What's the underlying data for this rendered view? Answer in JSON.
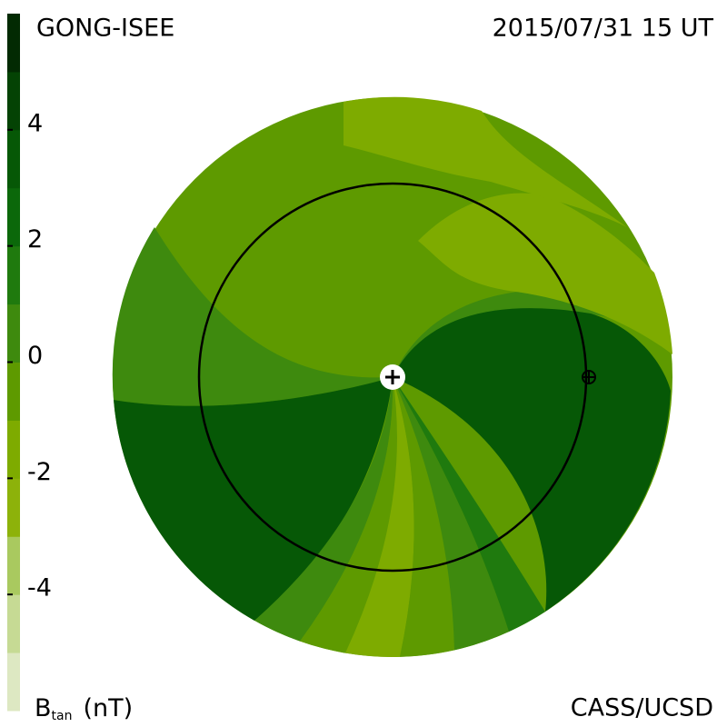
{
  "chart_data": {
    "type": "colormap-disc",
    "title": "GONG-ISEE",
    "subtitle": "2015/07/31 15 UT",
    "credit": "CASS/UCSD",
    "colorbar": {
      "label": "B",
      "label_sub": "tan",
      "unit": "(nT)",
      "lim": [
        -6,
        6
      ],
      "ticks": [
        -4,
        -2,
        0,
        2,
        4
      ],
      "colors": [
        "#dde8c2",
        "#c6da94",
        "#a9c95f",
        "#8db20a",
        "#7eab00",
        "#5e9a00",
        "#3e8a0e",
        "#1f7a0e",
        "#0b680a",
        "#065806",
        "#044304",
        "#022a02"
      ]
    }
  }
}
